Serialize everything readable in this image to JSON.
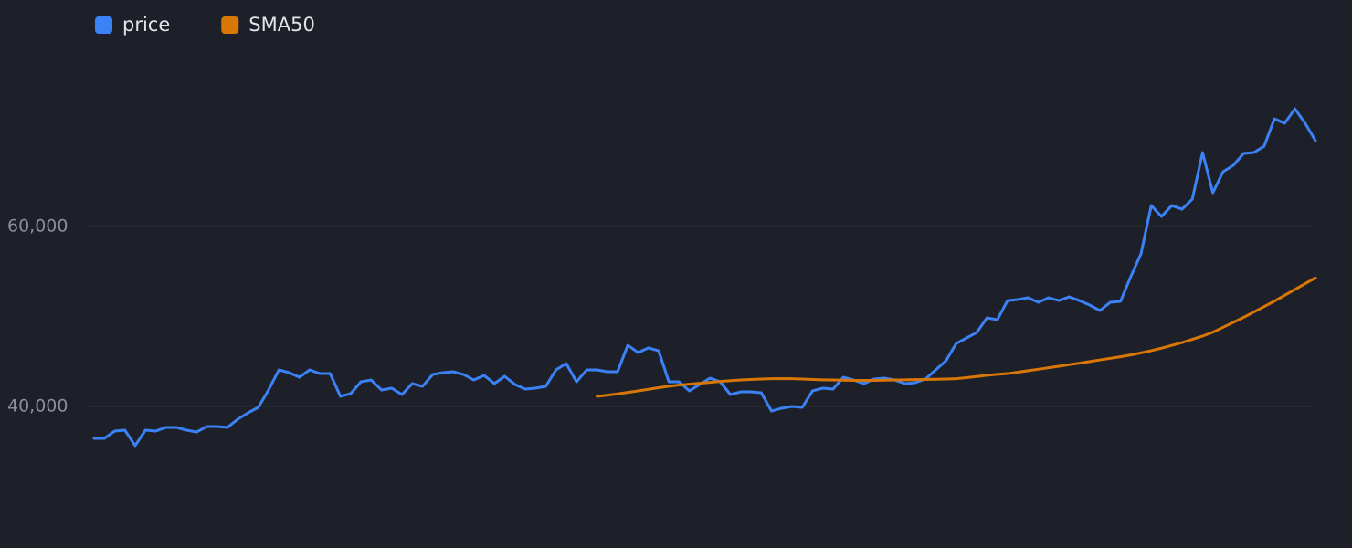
{
  "chart_data": {
    "type": "line",
    "series": [
      {
        "name": "price",
        "color": "#3b82f6",
        "values": [
          36450,
          36450,
          37260,
          37360,
          35640,
          37360,
          37260,
          37670,
          37670,
          37360,
          37160,
          37770,
          37770,
          37670,
          38580,
          39290,
          39900,
          41830,
          44060,
          43760,
          43250,
          44060,
          43650,
          43650,
          41120,
          41420,
          42740,
          42940,
          41830,
          42030,
          41320,
          42540,
          42230,
          43550,
          43760,
          43860,
          43550,
          42940,
          43450,
          42540,
          43350,
          42440,
          41930,
          42030,
          42230,
          44060,
          44770,
          42740,
          44060,
          44060,
          43860,
          43860,
          46800,
          45990,
          46500,
          46190,
          42740,
          42740,
          41730,
          42440,
          43150,
          42740,
          41320,
          41620,
          41620,
          41520,
          39490,
          39800,
          40000,
          39900,
          41730,
          42030,
          41930,
          43250,
          42940,
          42540,
          43050,
          43150,
          42940,
          42540,
          42640,
          43050,
          44060,
          45080,
          47000,
          47610,
          48220,
          49850,
          49640,
          51770,
          51880,
          52080,
          51570,
          52080,
          51770,
          52180,
          51770,
          51270,
          50660,
          51570,
          51670,
          54410,
          56950,
          62330,
          61110,
          62330,
          61920,
          63040,
          68220,
          63750,
          66090,
          66800,
          68120,
          68220,
          68930,
          71970,
          71470,
          73090,
          71470,
          69540
        ]
      },
      {
        "name": "SMA50",
        "color": "#d97706",
        "values": [
          null,
          null,
          null,
          null,
          null,
          null,
          null,
          null,
          null,
          null,
          null,
          null,
          null,
          null,
          null,
          null,
          null,
          null,
          null,
          null,
          null,
          null,
          null,
          null,
          null,
          null,
          null,
          null,
          null,
          null,
          null,
          null,
          null,
          null,
          null,
          null,
          null,
          null,
          null,
          null,
          null,
          null,
          null,
          null,
          null,
          null,
          null,
          null,
          null,
          41120,
          41250,
          41400,
          41560,
          41730,
          41900,
          42080,
          42250,
          42380,
          42480,
          42580,
          42680,
          42780,
          42870,
          42940,
          43000,
          43050,
          43080,
          43100,
          43080,
          43050,
          43000,
          42960,
          42940,
          42920,
          42900,
          42900,
          42900,
          42920,
          42940,
          42960,
          42980,
          43000,
          43020,
          43050,
          43080,
          43200,
          43330,
          43460,
          43560,
          43650,
          43810,
          43970,
          44130,
          44300,
          44470,
          44640,
          44810,
          44990,
          45170,
          45340,
          45520,
          45720,
          45950,
          46200,
          46480,
          46780,
          47100,
          47450,
          47820,
          48250,
          48800,
          49350,
          49900,
          50500,
          51100,
          51700,
          52350,
          53000,
          53650,
          54300
        ]
      }
    ],
    "ylim": [
      25000,
      80000
    ],
    "yticks": [
      {
        "value": 40000,
        "label": "40,000"
      },
      {
        "value": 60000,
        "label": "60,000"
      }
    ],
    "grid": true
  }
}
